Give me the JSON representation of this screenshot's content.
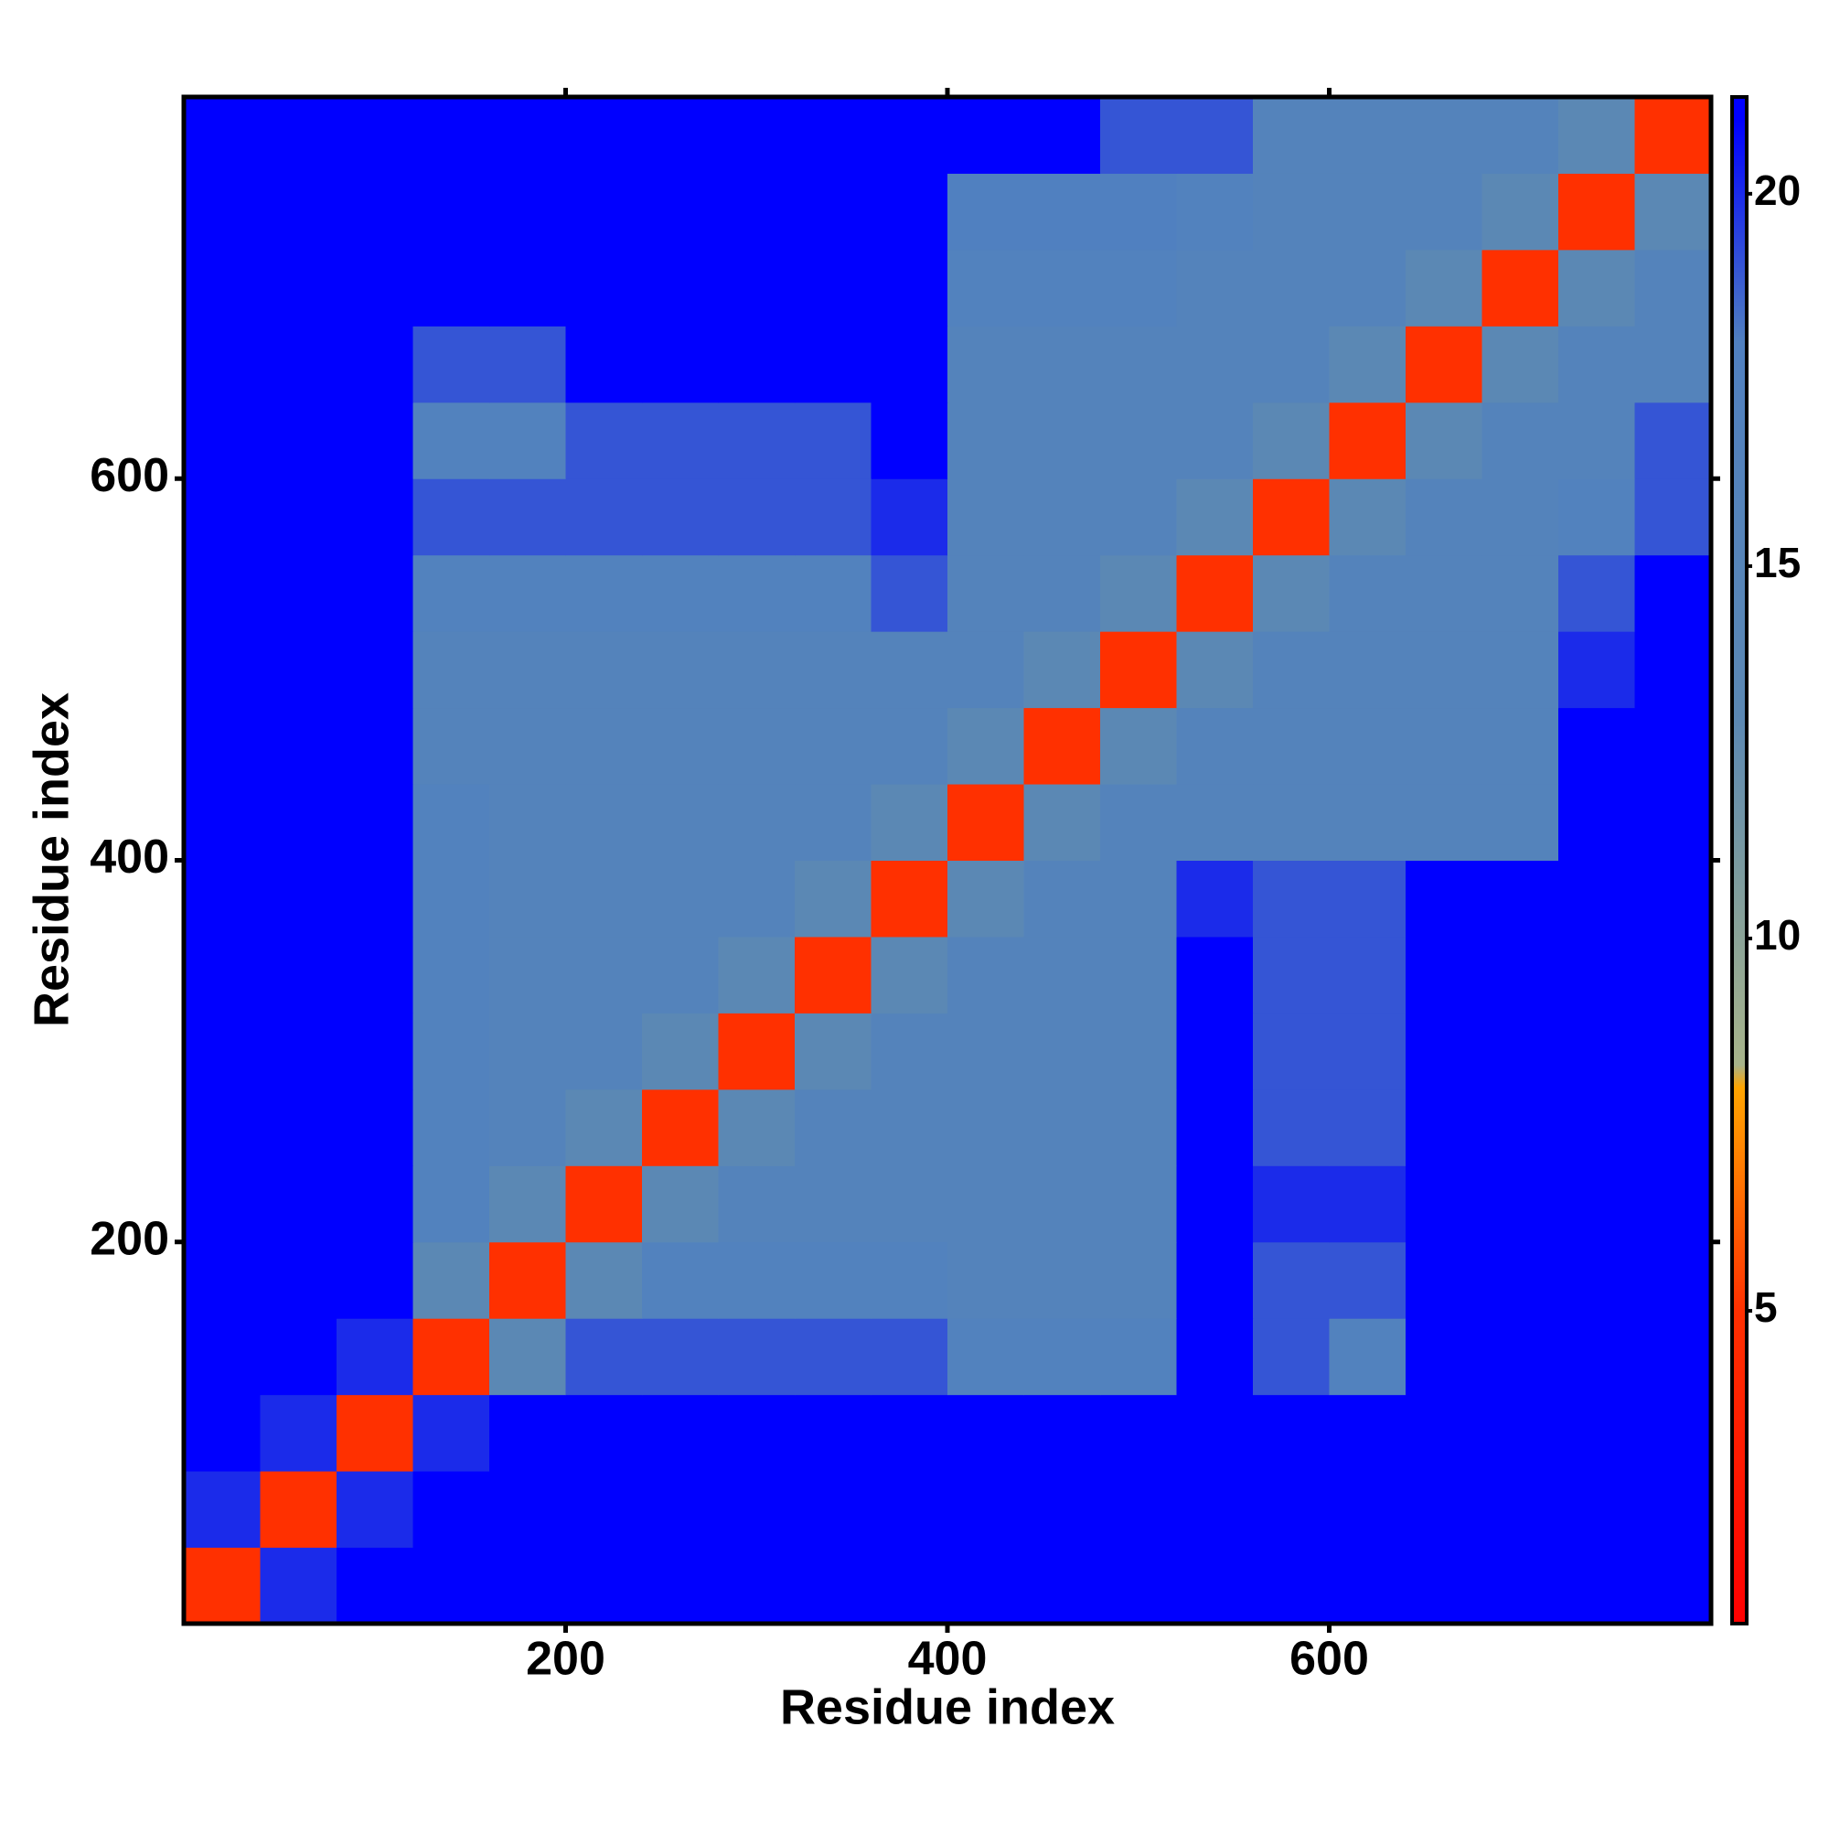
{
  "chart_data": {
    "type": "heatmap",
    "xlabel": "Residue index",
    "ylabel": "Residue index",
    "xlim": [
      0,
      800
    ],
    "ylim": [
      0,
      800
    ],
    "xticks": [
      200,
      400,
      600
    ],
    "yticks": [
      200,
      400,
      600
    ],
    "x_edges": [
      0,
      40,
      80,
      120,
      160,
      200,
      240,
      280,
      320,
      360,
      400,
      440,
      480,
      520,
      560,
      600,
      640,
      680,
      720,
      760,
      800
    ],
    "y_edges": [
      0,
      40,
      80,
      120,
      160,
      200,
      240,
      280,
      320,
      360,
      400,
      440,
      480,
      520,
      560,
      600,
      640,
      680,
      720,
      760,
      800
    ],
    "z": [
      [
        5,
        20,
        21,
        21,
        21,
        21,
        21,
        21,
        21,
        21,
        21,
        21,
        21,
        21,
        21,
        21,
        21,
        21,
        21,
        21
      ],
      [
        20,
        5,
        20,
        21,
        21,
        21,
        21,
        21,
        21,
        21,
        21,
        21,
        21,
        21,
        21,
        21,
        21,
        21,
        21,
        21
      ],
      [
        21,
        20,
        5,
        20,
        21,
        21,
        21,
        21,
        21,
        21,
        21,
        21,
        21,
        21,
        21,
        21,
        21,
        21,
        21,
        21
      ],
      [
        21,
        21,
        20,
        5,
        13,
        19,
        19,
        19,
        19,
        19,
        17,
        17,
        17,
        21,
        19,
        17,
        21,
        21,
        21,
        21
      ],
      [
        21,
        21,
        21,
        13,
        5,
        13,
        17,
        17,
        17,
        17,
        16,
        16,
        16,
        21,
        19,
        19,
        21,
        21,
        21,
        21
      ],
      [
        21,
        21,
        21,
        17,
        13,
        5,
        13,
        16,
        16,
        16,
        16,
        16,
        16,
        21,
        20,
        20,
        21,
        21,
        21,
        21
      ],
      [
        21,
        21,
        21,
        17,
        16,
        13,
        5,
        13,
        16,
        16,
        16,
        16,
        16,
        21,
        19,
        19,
        21,
        21,
        21,
        21
      ],
      [
        21,
        21,
        21,
        17,
        16,
        16,
        13,
        5,
        13,
        16,
        16,
        16,
        16,
        21,
        19,
        19,
        21,
        21,
        21,
        21
      ],
      [
        21,
        21,
        21,
        17,
        16,
        16,
        16,
        13,
        5,
        13,
        16,
        16,
        16,
        21,
        19,
        19,
        21,
        21,
        21,
        21
      ],
      [
        21,
        21,
        21,
        17,
        16,
        16,
        16,
        16,
        13,
        5,
        13,
        16,
        16,
        20,
        19,
        19,
        21,
        21,
        21,
        21
      ],
      [
        21,
        21,
        21,
        17,
        16,
        16,
        16,
        16,
        16,
        13,
        5,
        13,
        16,
        16,
        16,
        16,
        16,
        16,
        21,
        21
      ],
      [
        21,
        21,
        21,
        16,
        16,
        16,
        16,
        16,
        16,
        16,
        13,
        5,
        13,
        16,
        16,
        16,
        16,
        16,
        21,
        21
      ],
      [
        21,
        21,
        21,
        16,
        16,
        16,
        16,
        16,
        16,
        16,
        16,
        13,
        5,
        13,
        16,
        16,
        16,
        16,
        20,
        21
      ],
      [
        21,
        21,
        21,
        17,
        17,
        17,
        17,
        17,
        17,
        19,
        16,
        16,
        13,
        5,
        13,
        16,
        16,
        16,
        19,
        21
      ],
      [
        21,
        21,
        21,
        19,
        19,
        19,
        19,
        19,
        19,
        20,
        16,
        16,
        16,
        13,
        5,
        13,
        16,
        16,
        17,
        19
      ],
      [
        21,
        21,
        21,
        17,
        17,
        19,
        19,
        19,
        19,
        21,
        16,
        16,
        16,
        16,
        13,
        5,
        13,
        16,
        16,
        19
      ],
      [
        21,
        21,
        21,
        19,
        19,
        21,
        21,
        21,
        21,
        21,
        16,
        16,
        16,
        16,
        16,
        13,
        5,
        13,
        16,
        16
      ],
      [
        21,
        21,
        21,
        21,
        21,
        21,
        21,
        21,
        21,
        21,
        17,
        17,
        17,
        16,
        16,
        16,
        13,
        5,
        13,
        16
      ],
      [
        21,
        21,
        21,
        21,
        21,
        21,
        21,
        21,
        21,
        21,
        18,
        18,
        18,
        17,
        16,
        16,
        16,
        13,
        5,
        13
      ],
      [
        21,
        21,
        21,
        21,
        21,
        21,
        21,
        21,
        21,
        21,
        21,
        21,
        19,
        19,
        16,
        16,
        16,
        16,
        13,
        5
      ]
    ],
    "clim": [
      0.8,
      21.3
    ],
    "cticks": [
      5,
      10,
      15,
      20
    ],
    "colorscale": [
      [
        0.8,
        "#ff0000"
      ],
      [
        5,
        "#ff3000"
      ],
      [
        8,
        "#ffa500"
      ],
      [
        8.3,
        "#a8b48a"
      ],
      [
        11,
        "#7a9aa0"
      ],
      [
        13,
        "#5b88b4"
      ],
      [
        18,
        "#5080c0"
      ],
      [
        21,
        "#0000ff"
      ]
    ]
  }
}
